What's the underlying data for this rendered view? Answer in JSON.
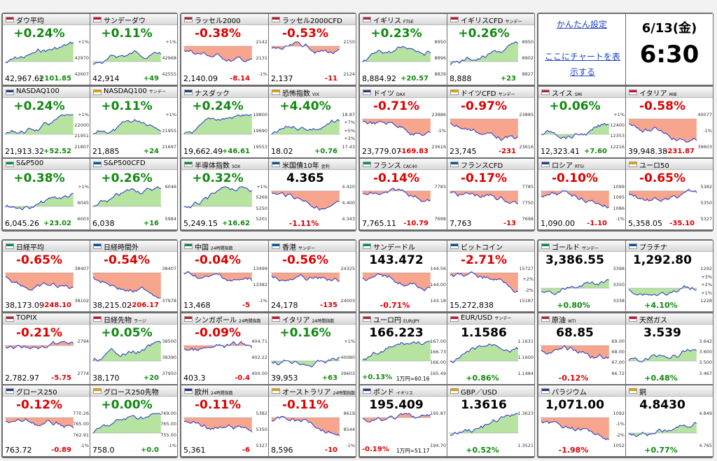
{
  "panel": {
    "settings": "かんたん設定",
    "chart_link": "ここにチャートを表示する",
    "date": "6/13(金)",
    "time": "6:30"
  },
  "tiles": [
    {
      "name": "ダウ平均",
      "pct": "+0.24%",
      "price": "42,967.62",
      "change": "+101.85",
      "axis": [
        "+1%",
        "42970",
        "42607"
      ],
      "big": "pct"
    },
    {
      "name": "サンデーダウ",
      "pct": "+0.11%",
      "price": "42,914",
      "change": "+49",
      "axis": [
        "+1%",
        "42968",
        "42555"
      ],
      "big": "pct"
    },
    {
      "name": "NASDAQ100",
      "pct": "+0.24%",
      "price": "21,913.32",
      "change": "+52.52",
      "axis": [
        "+1%",
        "22000",
        "21951",
        "21807"
      ],
      "big": "pct"
    },
    {
      "name": "NASDAQ100",
      "sub": "サンデー",
      "pct": "+0.11%",
      "price": "21,885",
      "change": "+24",
      "axis": [
        "+1%",
        "21955",
        "21697"
      ],
      "big": "pct"
    },
    {
      "name": "S&P500",
      "pct": "+0.38%",
      "price": "6,045.26",
      "change": "+23.02",
      "axis": [
        "+1%",
        "6045",
        "6003"
      ],
      "big": "pct"
    },
    {
      "name": "S&P500CFD",
      "pct": "+0.26%",
      "price": "6,038",
      "change": "+16",
      "axis": [
        "6046",
        "5984"
      ],
      "big": "pct"
    },
    {
      "name": "ラッセル2000",
      "pct": "-0.38%",
      "price": "2,140.09",
      "change": "-8.14",
      "axis": [
        "2142",
        "2131",
        "-1%"
      ],
      "big": "pct"
    },
    {
      "name": "ラッセル2000CFD",
      "pct": "-0.53%",
      "price": "2,137",
      "change": "-11",
      "axis": [
        "2150",
        "2124"
      ],
      "big": "pct"
    },
    {
      "name": "ナスダック",
      "pct": "+0.24%",
      "price": "19,662.49",
      "change": "+46.61",
      "axis": [
        "19800",
        "19690",
        "19553"
      ],
      "big": "pct"
    },
    {
      "name": "恐怖指数",
      "sub": "VIX",
      "pct": "+4.40%",
      "price": "18.02",
      "change": "+0.76",
      "axis": [
        "18.87",
        "+7%",
        "+5%",
        "+3%",
        "17.43"
      ],
      "big": "pct"
    },
    {
      "name": "半導体指数",
      "sub": "SOX",
      "pct": "+0.32%",
      "price": "5,249.15",
      "change": "+16.62",
      "axis": [
        "+1%",
        "5269",
        "5250",
        "5201"
      ],
      "big": "pct"
    },
    {
      "name": "米国債10年",
      "sub": "金利",
      "pct": "-1.11%",
      "price": "4.365",
      "axis": [
        "4.420",
        "4.400",
        "4.343"
      ],
      "big": "price"
    },
    {
      "name": "イギリス",
      "sub": "FTSE",
      "pct": "+0.23%",
      "price": "8,884.92",
      "change": "+20.57",
      "axis": [
        "8950",
        "8896",
        "8839"
      ],
      "big": "pct"
    },
    {
      "name": "イギリスCFD",
      "sub": "サンデー",
      "pct": "+0.26%",
      "price": "8,888",
      "change": "+23",
      "axis": [
        "8950",
        "8902",
        "8827"
      ],
      "big": "pct"
    },
    {
      "name": "ドイツ",
      "sub": "DAX",
      "pct": "-0.71%",
      "price": "23,779.07",
      "change": "-169.83",
      "axis": [
        "23886",
        "-1%",
        "23616"
      ],
      "big": "pct"
    },
    {
      "name": "ドイツCFD",
      "sub": "サンデー",
      "pct": "-0.97%",
      "price": "23,745",
      "change": "-231",
      "axis": [
        "23885",
        "23616"
      ],
      "big": "pct"
    },
    {
      "name": "フランス",
      "sub": "CAC40",
      "pct": "-0.14%",
      "price": "7,765.11",
      "change": "-10.79",
      "axis": [
        "7783",
        "7698"
      ],
      "big": "pct"
    },
    {
      "name": "フランスCFD",
      "pct": "-0.17%",
      "price": "7,763",
      "change": "-13",
      "axis": [
        "7785",
        "7750",
        "7698"
      ],
      "big": "pct"
    },
    {
      "name": "スイス",
      "sub": "SMI",
      "pct": "+0.06%",
      "price": "12,323.41",
      "change": "+7.60",
      "axis": [
        "+1%",
        "12400",
        "12353",
        "12216"
      ],
      "big": "pct"
    },
    {
      "name": "イタリア",
      "sub": "MIB",
      "pct": "-0.58%",
      "price": "39,948.38",
      "change": "-231.87",
      "axis": [
        "40077",
        "-1%",
        "39603"
      ],
      "big": "pct"
    },
    {
      "name": "ロシア",
      "sub": "RTSI",
      "pct": "-0.10%",
      "price": "1,090.00",
      "change": "-1.10",
      "axis": [
        "1099",
        "1095",
        "1086",
        "-1%"
      ],
      "big": "pct"
    },
    {
      "name": "ユーロ50",
      "pct": "-0.65%",
      "price": "5,358.05",
      "change": "-35.10",
      "axis": [
        "5382",
        "5350",
        "5327"
      ],
      "big": "pct"
    },
    {
      "name": "日経平均",
      "pct": "-0.65%",
      "price": "38,173.09",
      "change": "-248.10",
      "axis": [
        "38407",
        "38102"
      ],
      "big": "pct"
    },
    {
      "name": "日経時間外",
      "pct": "-0.54%",
      "price": "38,215.02",
      "change": "-206.17",
      "axis": [
        "38407",
        "37978"
      ],
      "big": "pct"
    },
    {
      "name": "TOPIX",
      "pct": "-0.21%",
      "price": "2,782.97",
      "change": "-5.75",
      "axis": [
        "2794",
        "2774"
      ],
      "big": "pct"
    },
    {
      "name": "日経先物",
      "sub": "ラージ",
      "pct": "+0.05%",
      "price": "38,170",
      "change": "+20",
      "axis": [
        "38500",
        "38390",
        "37950"
      ],
      "big": "pct"
    },
    {
      "name": "グロース250",
      "pct": "-0.12%",
      "price": "763.72",
      "change": "-0.89",
      "axis": [
        "770.26",
        "765.00",
        "762.91",
        "-1%"
      ],
      "big": "pct"
    },
    {
      "name": "グロース250先物",
      "pct": "+0.00%",
      "price": "758.0",
      "change": "+0.0",
      "axis": [
        "769.00",
        "765.00",
        "755.00",
        "-1%"
      ],
      "big": "pct"
    },
    {
      "name": "中国",
      "sub": "24時間指数",
      "pct": "-0.04%",
      "price": "13,468",
      "change": "-5",
      "axis": [
        "13499",
        "13382",
        "-1%"
      ],
      "big": "pct"
    },
    {
      "name": "香港",
      "sub": "サンデー",
      "pct": "-0.56%",
      "price": "24,178",
      "change": "-135",
      "axis": [
        "24325",
        "24003"
      ],
      "big": "pct"
    },
    {
      "name": "シンガポール",
      "sub": "24時間指数",
      "pct": "-0.09%",
      "price": "403.3",
      "change": "-0.4",
      "axis": [
        "404.71",
        "402.22",
        "400.00"
      ],
      "big": "pct"
    },
    {
      "name": "イタリア",
      "sub": "24時間指数",
      "pct": "+0.16%",
      "price": "39,953",
      "change": "+63",
      "axis": [
        "+1%",
        "40080",
        "39603"
      ],
      "big": "pct"
    },
    {
      "name": "欧州",
      "sub": "24時間指数",
      "pct": "-0.11%",
      "price": "5,361",
      "change": "-6",
      "axis": [
        "5382",
        "5350",
        "5327"
      ],
      "big": "pct"
    },
    {
      "name": "オーストラリア",
      "sub": "24時間指数",
      "pct": "-0.11%",
      "price": "8,596",
      "change": "-10",
      "axis": [
        "8619",
        "8544",
        "-1%"
      ],
      "big": "pct"
    },
    {
      "name": "サンデードル",
      "pct": "-0.71%",
      "price": "143.472",
      "axis": [
        "144.56",
        "144.00",
        "143.18"
      ],
      "big": "price"
    },
    {
      "name": "ビットコイン",
      "pct": "-2.71%",
      "price": "15,272,838",
      "axis": [
        "15727",
        "+2%",
        "-2%",
        "15187"
      ],
      "big": "pct"
    },
    {
      "name": "ユーロ円",
      "sub": "EUR/JPY",
      "pct": "+0.13%",
      "price": "166.223",
      "note": "1万円=60.16",
      "axis": [
        "167.00",
        "166.73",
        "166.00",
        "165.49"
      ],
      "big": "price"
    },
    {
      "name": "EUR/USD",
      "sub": "サンデー",
      "pct": "+0.86%",
      "price": "1.1586",
      "axis": [
        "1.1631",
        "1.1600",
        "1.1484"
      ],
      "big": "price"
    },
    {
      "name": "ポンド",
      "sub": "イギリス",
      "pct": "-0.19%",
      "price": "195.409",
      "note": "1万円=51.17",
      "axis": [
        "195.87",
        "194.70"
      ],
      "big": "price"
    },
    {
      "name": "GBP／USD",
      "pct": "+0.52%",
      "price": "1.3616",
      "axis": [
        "1.3623",
        "1.3521"
      ],
      "big": "price"
    },
    {
      "name": "ゴールド",
      "sub": "サンデー",
      "pct": "+0.80%",
      "price": "3,386.55",
      "axis": [
        "3398",
        "3350",
        "3338"
      ],
      "big": "price"
    },
    {
      "name": "プラチナ",
      "pct": "+4.10%",
      "price": "1,292.80",
      "axis": [
        "1292",
        "+3%",
        "+2%",
        "+1%",
        "1228"
      ],
      "big": "price"
    },
    {
      "name": "原油",
      "sub": "WTI",
      "pct": "-0.12%",
      "price": "68.85",
      "axis": [
        "69.00",
        "68.00",
        "67.00",
        "66.72"
      ],
      "big": "price"
    },
    {
      "name": "天然ガス",
      "pct": "+0.48%",
      "price": "3.539",
      "axis": [
        "3.642",
        "3.600",
        "3.500",
        "3.467"
      ],
      "big": "price"
    },
    {
      "name": "パラジウム",
      "pct": "-1.98%",
      "price": "1,071.00",
      "axis": [
        "1092",
        "-1%",
        "-2%",
        "1052"
      ],
      "big": "price"
    },
    {
      "name": "銅",
      "pct": "+0.77%",
      "price": "4.8430",
      "axis": [
        "4.849",
        "4.765"
      ],
      "big": "price"
    }
  ]
}
